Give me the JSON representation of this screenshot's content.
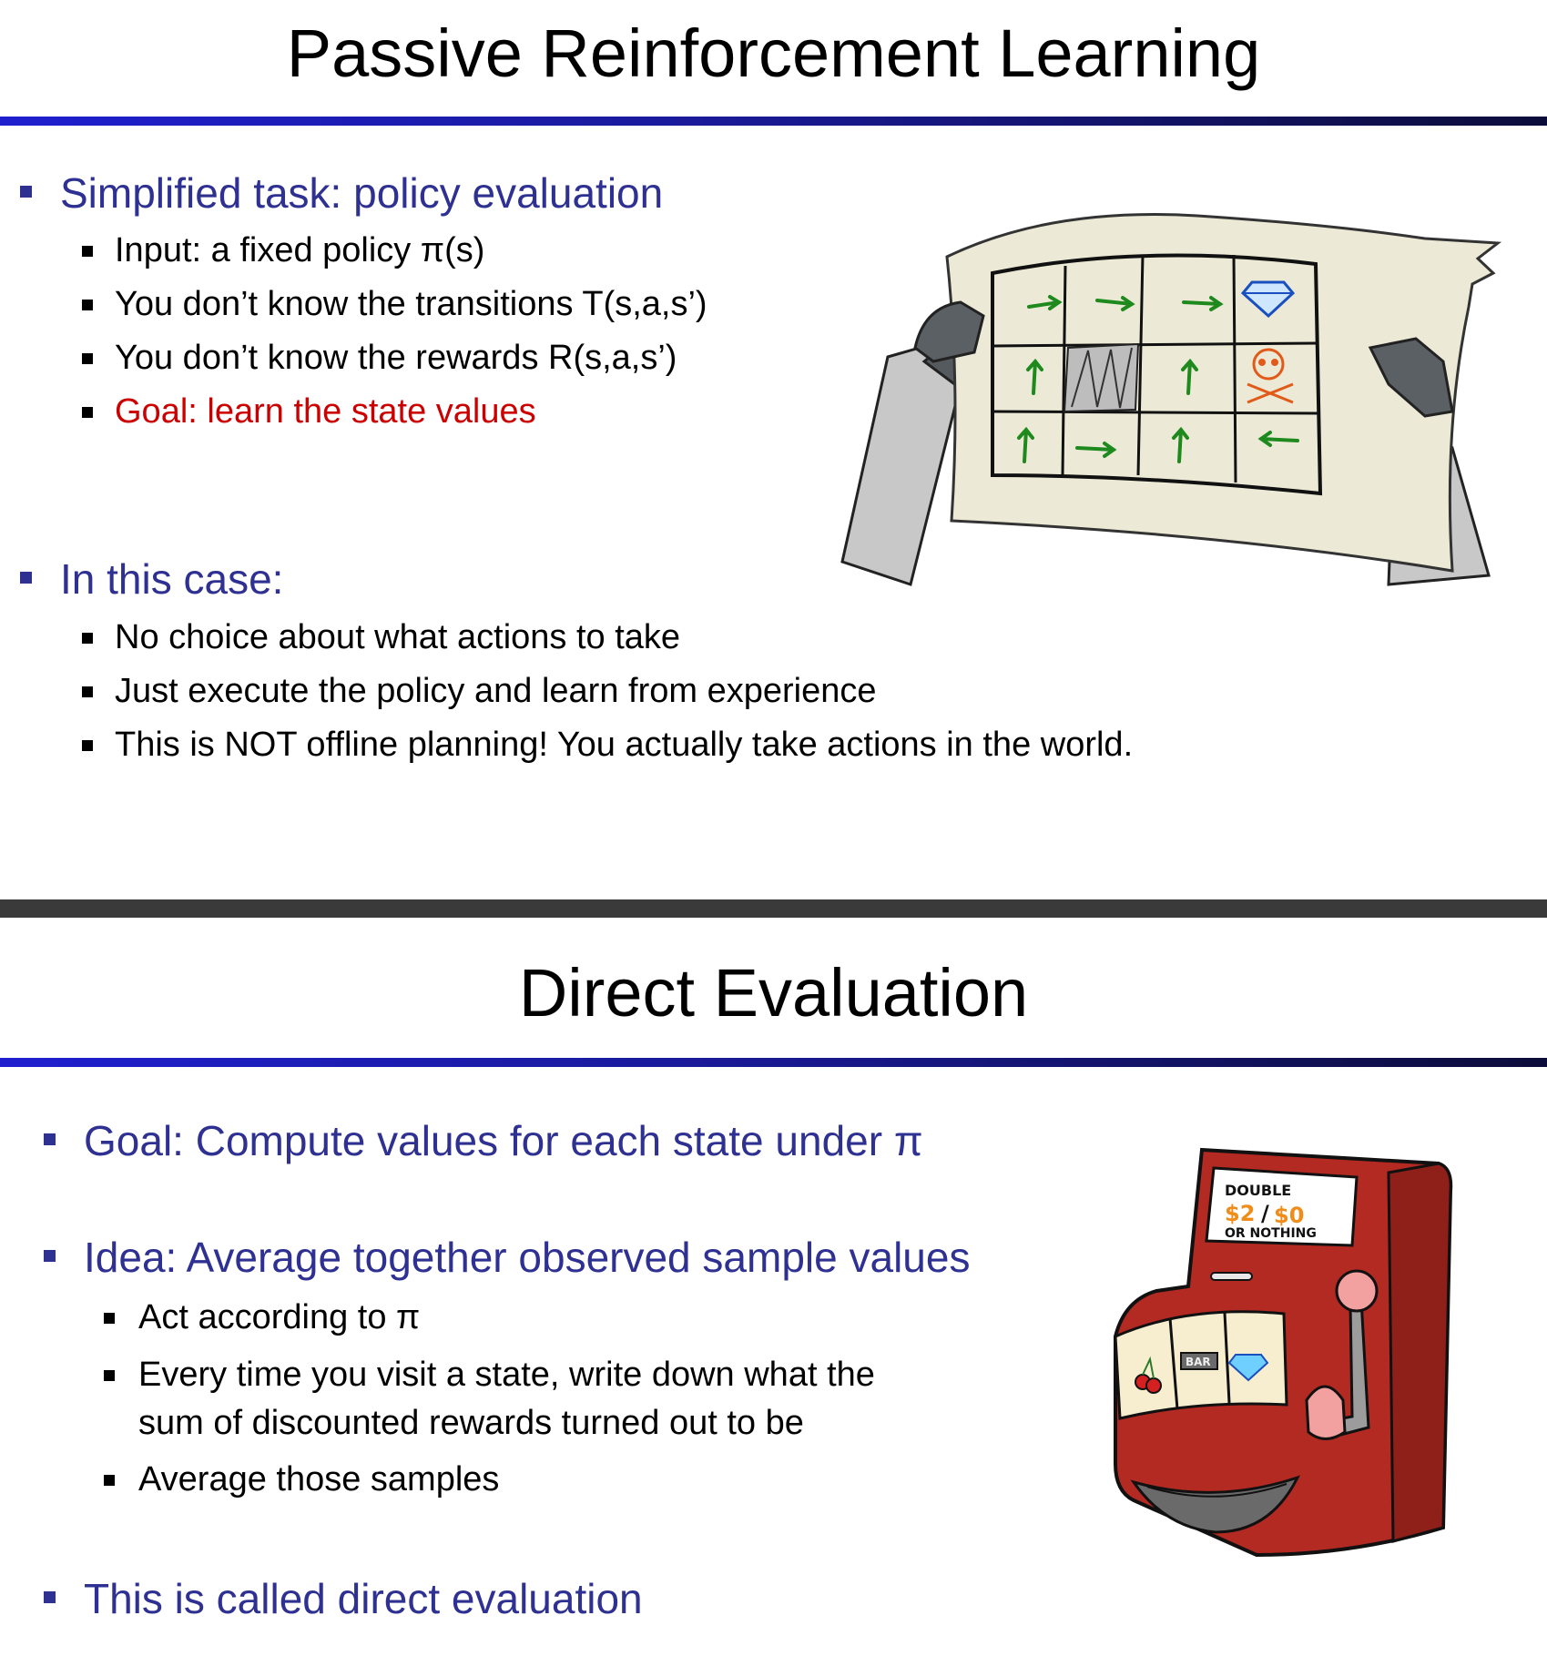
{
  "slide1": {
    "title": "Passive Reinforcement Learning",
    "b1": "Simplified task: policy evaluation",
    "b1_sub": [
      "Input: a fixed policy π(s)",
      "You don’t know the transitions T(s,a,s’)",
      "You don’t know the rewards R(s,a,s’)",
      "Goal: learn the state values"
    ],
    "b2": "In this case:",
    "b2_sub": [
      "No choice about what actions to take",
      "Just execute the policy and learn from experience",
      "This is NOT offline planning!  You actually take actions in the world."
    ],
    "illustration": "robot-holding-gridworld-map-icon"
  },
  "slide2": {
    "title": "Direct Evaluation",
    "b1": "Goal: Compute values for each state under π",
    "b2": "Idea: Average together observed sample values",
    "b2_sub": [
      "Act according to π",
      "Every time you visit a state, write down what the",
      "sum of discounted rewards turned out to be",
      "Average those samples"
    ],
    "b3": "This is called direct evaluation",
    "slot_machine": {
      "line1": "DOUBLE",
      "line2a": "$2",
      "line2b": "$0",
      "line3": "OR NOTHING",
      "reel_bar": "BAR"
    }
  },
  "colors": {
    "bullet_blue": "#2e3192",
    "goal_red": "#cc0000",
    "machine_red": "#b22a22"
  }
}
